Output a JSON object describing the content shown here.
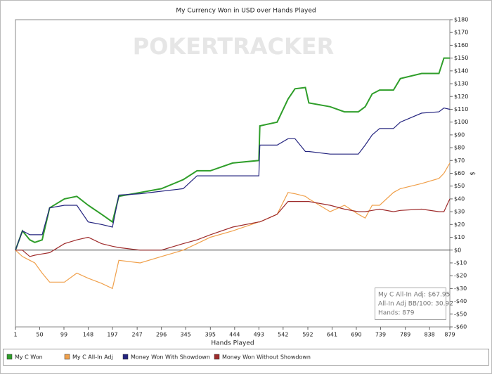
{
  "chart_data": {
    "type": "line",
    "title": "My Currency Won in USD over Hands Played",
    "watermark": "POKERTRACKER",
    "x_label": "Hands Played",
    "y_label": "$",
    "x": [
      1,
      15,
      30,
      40,
      55,
      70,
      100,
      125,
      148,
      175,
      197,
      210,
      253,
      296,
      340,
      368,
      395,
      440,
      493,
      495,
      530,
      552,
      566,
      587,
      594,
      637,
      666,
      694,
      708,
      722,
      737,
      765,
      779,
      822,
      857,
      867,
      879
    ],
    "series": [
      {
        "name": "My C Won",
        "color": "#2f9e2a",
        "values": [
          0,
          15,
          8,
          6,
          8,
          33,
          40,
          42,
          35,
          28,
          22,
          42,
          45,
          48,
          55,
          62,
          62,
          68,
          70,
          97,
          100,
          118,
          126,
          127,
          115,
          112,
          108,
          108,
          112,
          122,
          125,
          125,
          134,
          138,
          138,
          150,
          150
        ]
      },
      {
        "name": "My C All-In Adj",
        "color": "#f0a04b",
        "values": [
          0,
          -5,
          -8,
          -10,
          -18,
          -25,
          -25,
          -18,
          -22,
          -26,
          -30,
          -8,
          -10,
          -5,
          0,
          5,
          10,
          15,
          22,
          22,
          28,
          45,
          44,
          42,
          40,
          30,
          35,
          28,
          25,
          35,
          35,
          45,
          48,
          52,
          56,
          60,
          68
        ]
      },
      {
        "name": "Money Won With Showdown",
        "color": "#24247f",
        "values": [
          0,
          15,
          12,
          12,
          12,
          33,
          35,
          35,
          22,
          20,
          18,
          43,
          44,
          46,
          48,
          58,
          58,
          58,
          58,
          82,
          82,
          87,
          87,
          77,
          77,
          75,
          75,
          75,
          82,
          90,
          95,
          95,
          100,
          107,
          108,
          111,
          110
        ]
      },
      {
        "name": "Money Won Without Showdown",
        "color": "#9e2b2b",
        "values": [
          0,
          0,
          -5,
          -4,
          -3,
          -2,
          5,
          8,
          10,
          5,
          3,
          2,
          0,
          0,
          5,
          8,
          12,
          18,
          22,
          22,
          28,
          38,
          38,
          38,
          38,
          35,
          32,
          30,
          30,
          31,
          32,
          30,
          31,
          32,
          30,
          30,
          40
        ]
      }
    ],
    "xlim": [
      1,
      879
    ],
    "xticks": [
      1,
      50,
      99,
      148,
      197,
      247,
      296,
      345,
      395,
      444,
      493,
      542,
      592,
      641,
      690,
      739,
      789,
      838,
      879
    ],
    "ylim": [
      -60,
      180
    ],
    "yticks": [
      {
        "value": -60,
        "label": "-$60"
      },
      {
        "value": -50,
        "label": "-$50"
      },
      {
        "value": -40,
        "label": "-$40"
      },
      {
        "value": -30,
        "label": "-$30"
      },
      {
        "value": -20,
        "label": "-$20"
      },
      {
        "value": -10,
        "label": "-$10"
      },
      {
        "value": 0,
        "label": "$0"
      },
      {
        "value": 10,
        "label": "$10"
      },
      {
        "value": 20,
        "label": "$20"
      },
      {
        "value": 30,
        "label": "$30"
      },
      {
        "value": 40,
        "label": "$40"
      },
      {
        "value": 50,
        "label": "$50"
      },
      {
        "value": 60,
        "label": "$60"
      },
      {
        "value": 70,
        "label": "$70"
      },
      {
        "value": 80,
        "label": "$80"
      },
      {
        "value": 90,
        "label": "$90"
      },
      {
        "value": 100,
        "label": "$100"
      },
      {
        "value": 110,
        "label": "$110"
      },
      {
        "value": 120,
        "label": "$120"
      },
      {
        "value": 130,
        "label": "$130"
      },
      {
        "value": 140,
        "label": "$140"
      },
      {
        "value": 150,
        "label": "$150"
      },
      {
        "value": 160,
        "label": "$160"
      },
      {
        "value": 170,
        "label": "$170"
      },
      {
        "value": 180,
        "label": "$180"
      }
    ],
    "grid": false,
    "info_box": [
      "My C All-In Adj: $67.95",
      "All-In Adj BB/100: 30.92",
      "Hands: 879"
    ]
  }
}
